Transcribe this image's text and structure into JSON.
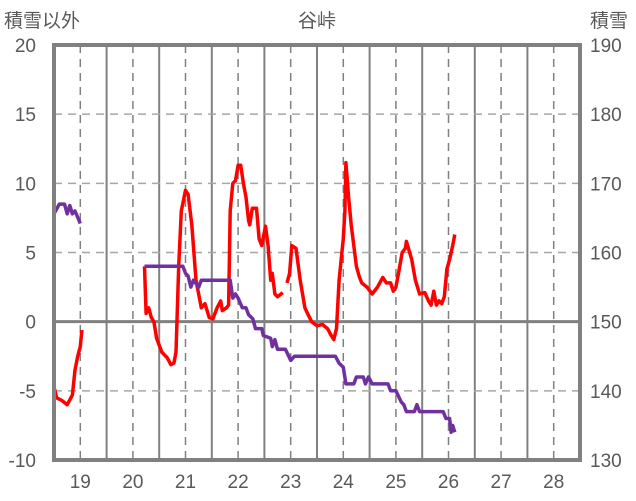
{
  "chart_data": {
    "type": "line",
    "title": "谷峠",
    "ylabel_left": "積雪以外",
    "ylabel_right": "積雪",
    "xlim": [
      18.5,
      28.5
    ],
    "ylim_left": [
      -10,
      20
    ],
    "ylim_right": [
      130,
      190
    ],
    "x_ticks": [
      "19",
      "20",
      "21",
      "22",
      "23",
      "24",
      "25",
      "26",
      "27",
      "28"
    ],
    "y_ticks_left": [
      "20",
      "15",
      "10",
      "5",
      "0",
      "-5",
      "-10"
    ],
    "y_ticks_right": [
      "190",
      "180",
      "170",
      "160",
      "150",
      "140",
      "130"
    ],
    "grid": true,
    "colors": {
      "other": "#ff0000",
      "snow": "#7030a0",
      "axis": "#808080",
      "text": "#595959"
    },
    "series": [
      {
        "name": "積雪以外",
        "axis": "left",
        "color": "#ff0000",
        "segments": [
          [
            [
              18.5,
              -4.7
            ],
            [
              18.55,
              -5.5
            ],
            [
              18.65,
              -5.7
            ],
            [
              18.75,
              -6.0
            ],
            [
              18.85,
              -5.3
            ],
            [
              18.9,
              -3.5
            ],
            [
              18.95,
              -2.5
            ],
            [
              19.0,
              -1.8
            ],
            [
              19.03,
              -0.6
            ]
          ],
          [
            [
              20.22,
              4.0
            ],
            [
              20.25,
              0.6
            ],
            [
              20.3,
              1.0
            ],
            [
              20.35,
              0.3
            ],
            [
              20.4,
              0.0
            ],
            [
              20.45,
              -1.2
            ],
            [
              20.55,
              -2.2
            ],
            [
              20.65,
              -2.6
            ],
            [
              20.72,
              -3.1
            ],
            [
              20.78,
              -3.0
            ],
            [
              20.82,
              -2.2
            ],
            [
              20.87,
              4.0
            ],
            [
              20.92,
              8.0
            ],
            [
              21.0,
              9.5
            ],
            [
              21.05,
              9.2
            ],
            [
              21.12,
              7.0
            ],
            [
              21.2,
              3.0
            ],
            [
              21.3,
              1.0
            ],
            [
              21.37,
              1.3
            ],
            [
              21.45,
              0.3
            ],
            [
              21.52,
              0.2
            ],
            [
              21.6,
              1.0
            ],
            [
              21.67,
              1.5
            ],
            [
              21.7,
              0.8
            ],
            [
              21.78,
              1.0
            ],
            [
              21.82,
              1.2
            ],
            [
              21.85,
              8.0
            ],
            [
              21.9,
              10.0
            ],
            [
              21.95,
              10.2
            ],
            [
              22.0,
              11.3
            ],
            [
              22.05,
              11.3
            ],
            [
              22.1,
              10.0
            ],
            [
              22.15,
              9.0
            ],
            [
              22.2,
              7.3
            ],
            [
              22.22,
              7.0
            ],
            [
              22.27,
              8.2
            ],
            [
              22.35,
              8.2
            ],
            [
              22.4,
              6.0
            ],
            [
              22.45,
              5.5
            ],
            [
              22.52,
              6.9
            ],
            [
              22.57,
              5.5
            ],
            [
              22.62,
              3.0
            ],
            [
              22.65,
              3.5
            ],
            [
              22.7,
              2.0
            ],
            [
              22.75,
              1.8
            ],
            [
              22.85,
              2.1
            ]
          ],
          [
            [
              22.93,
              2.8
            ],
            [
              22.98,
              3.5
            ],
            [
              23.02,
              5.5
            ],
            [
              23.1,
              5.3
            ],
            [
              23.18,
              3.0
            ],
            [
              23.27,
              1.0
            ],
            [
              23.32,
              0.6
            ],
            [
              23.4,
              0.0
            ],
            [
              23.5,
              -0.3
            ],
            [
              23.6,
              -0.2
            ],
            [
              23.7,
              -0.5
            ],
            [
              23.77,
              -1.0
            ],
            [
              23.82,
              -1.3
            ],
            [
              23.87,
              -0.5
            ],
            [
              23.92,
              3.0
            ],
            [
              24.0,
              6.0
            ],
            [
              24.03,
              8.0
            ],
            [
              24.05,
              11.5
            ],
            [
              24.1,
              9.0
            ],
            [
              24.15,
              7.0
            ],
            [
              24.25,
              4.0
            ],
            [
              24.3,
              3.3
            ],
            [
              24.35,
              2.8
            ],
            [
              24.45,
              2.5
            ],
            [
              24.55,
              2.0
            ],
            [
              24.65,
              2.5
            ],
            [
              24.75,
              3.2
            ],
            [
              24.82,
              2.8
            ],
            [
              24.9,
              2.8
            ],
            [
              24.95,
              2.2
            ],
            [
              25.0,
              2.5
            ],
            [
              25.05,
              3.5
            ],
            [
              25.12,
              5.0
            ],
            [
              25.18,
              5.3
            ],
            [
              25.2,
              5.8
            ],
            [
              25.3,
              4.5
            ],
            [
              25.37,
              3.0
            ],
            [
              25.45,
              2.0
            ],
            [
              25.55,
              2.1
            ],
            [
              25.62,
              1.5
            ],
            [
              25.67,
              1.2
            ],
            [
              25.72,
              2.2
            ],
            [
              25.77,
              1.2
            ],
            [
              25.82,
              1.5
            ],
            [
              25.87,
              1.3
            ],
            [
              25.92,
              1.8
            ],
            [
              25.97,
              3.8
            ],
            [
              26.02,
              4.5
            ],
            [
              26.08,
              5.5
            ],
            [
              26.12,
              6.3
            ]
          ]
        ]
      },
      {
        "name": "積雪",
        "axis": "right",
        "color": "#7030a0",
        "segments": [
          [
            [
              18.5,
              165.6
            ],
            [
              18.6,
              167
            ],
            [
              18.7,
              167
            ],
            [
              18.75,
              165.6
            ],
            [
              18.8,
              166.8
            ],
            [
              18.85,
              165.6
            ],
            [
              18.9,
              166
            ],
            [
              19.0,
              164.2
            ]
          ],
          [
            [
              20.22,
              158
            ],
            [
              20.95,
              158
            ],
            [
              21.0,
              157
            ],
            [
              21.05,
              156.6
            ],
            [
              21.1,
              155
            ],
            [
              21.15,
              156
            ],
            [
              21.25,
              155
            ],
            [
              21.3,
              156
            ],
            [
              21.85,
              156
            ],
            [
              21.9,
              153.4
            ],
            [
              21.95,
              154
            ],
            [
              22.0,
              153.4
            ],
            [
              22.08,
              152
            ],
            [
              22.15,
              152
            ],
            [
              22.2,
              151
            ],
            [
              22.28,
              150.4
            ],
            [
              22.33,
              149
            ],
            [
              22.45,
              149
            ],
            [
              22.48,
              148
            ],
            [
              22.62,
              147.6
            ],
            [
              22.65,
              146.4
            ],
            [
              22.7,
              147.4
            ],
            [
              22.75,
              146
            ],
            [
              22.9,
              146
            ],
            [
              23.0,
              144.4
            ],
            [
              23.07,
              145
            ],
            [
              23.85,
              145
            ],
            [
              23.92,
              144
            ],
            [
              24.0,
              143.4
            ],
            [
              24.05,
              141
            ],
            [
              24.2,
              141
            ],
            [
              24.25,
              142
            ],
            [
              24.38,
              142
            ],
            [
              24.42,
              141
            ],
            [
              24.48,
              142
            ],
            [
              24.55,
              141
            ],
            [
              24.85,
              141
            ],
            [
              24.9,
              140
            ],
            [
              25.0,
              140
            ],
            [
              25.1,
              138.4
            ],
            [
              25.15,
              138
            ],
            [
              25.2,
              137
            ],
            [
              25.35,
              137
            ],
            [
              25.4,
              138
            ],
            [
              25.45,
              137
            ],
            [
              25.9,
              137
            ],
            [
              25.95,
              136
            ],
            [
              26.02,
              136
            ],
            [
              26.05,
              134
            ],
            [
              26.08,
              135
            ],
            [
              26.12,
              134
            ]
          ]
        ]
      }
    ]
  }
}
